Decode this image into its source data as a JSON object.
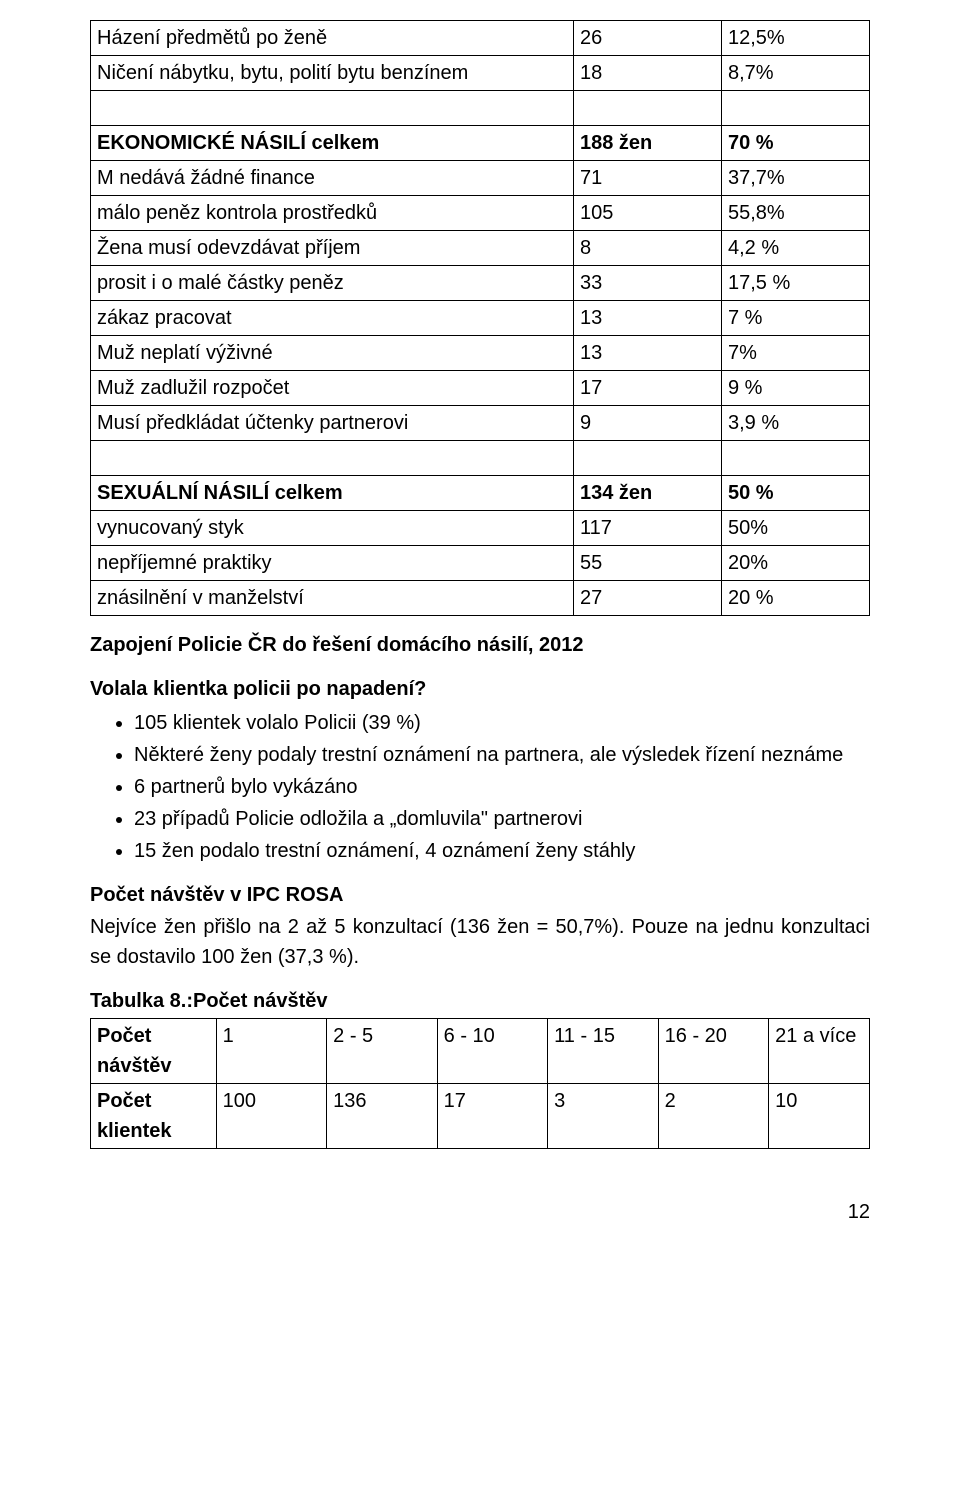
{
  "table1": {
    "rows": [
      {
        "c1": "Házení předmětů po ženě",
        "c2": "26",
        "c3": "12,5%",
        "bold": false
      },
      {
        "c1": "Ničení nábytku, bytu, polití bytu benzínem",
        "c2": "18",
        "c3": "8,7%",
        "bold": false,
        "justify": true
      },
      {
        "c1": "",
        "c2": "",
        "c3": "",
        "bold": false
      },
      {
        "c1": "EKONOMICKÉ NÁSILÍ     celkem",
        "c2": "188 žen",
        "c3": "70 %",
        "bold": true
      },
      {
        "c1": "M nedává žádné finance",
        "c2": "71",
        "c3": "37,7%",
        "bold": false
      },
      {
        "c1": "málo peněz kontrola prostředků",
        "c2": "105",
        "c3": "55,8%",
        "bold": false
      },
      {
        "c1": "Žena musí odevzdávat příjem",
        "c2": "8",
        "c3": "4,2 %",
        "bold": false
      },
      {
        "c1": "prosit i o malé částky peněz",
        "c2": "33",
        "c3": "17,5 %",
        "bold": false
      },
      {
        "c1": "zákaz pracovat",
        "c2": "13",
        "c3": "7 %",
        "bold": false
      },
      {
        "c1": "Muž neplatí výživné",
        "c2": "13",
        "c3": "7%",
        "bold": false
      },
      {
        "c1": "Muž zadlužil rozpočet",
        "c2": "17",
        "c3": "9 %",
        "bold": false
      },
      {
        "c1": "Musí předkládat účtenky partnerovi",
        "c2": "9",
        "c3": "3,9 %",
        "bold": false
      },
      {
        "c1": "",
        "c2": "",
        "c3": "",
        "bold": false
      },
      {
        "c1": "SEXUÁLNÍ NÁSILÍ           celkem",
        "c2": "134 žen",
        "c3": "50 %",
        "bold": true
      },
      {
        "c1": "vynucovaný styk",
        "c2": "117",
        "c3": "50%",
        "bold": false
      },
      {
        "c1": "nepříjemné praktiky",
        "c2": "55",
        "c3": "20%",
        "bold": false
      },
      {
        "c1": "znásilnění v manželství",
        "c2": "27",
        "c3": "20 %",
        "bold": false
      }
    ]
  },
  "section_police": {
    "heading": "Zapojení Policie ČR do řešení domácího násilí, 2012",
    "subheading": "Volala klientka policii po napadení?",
    "bullets": [
      "105 klientek volalo Policii  (39 %)",
      "Některé ženy podaly trestní oznámení na partnera, ale výsledek řízení neznáme",
      "6 partnerů bylo vykázáno",
      "23 případů Policie odložila  a „domluvila\" partnerovi",
      "15 žen podalo trestní oznámení, 4 oznámení ženy stáhly"
    ]
  },
  "section_visits": {
    "heading": "Počet návštěv v IPC ROSA",
    "line1": "Nejvíce žen přišlo na 2 až 5 konzultací (136 žen = 50,7%).   Pouze na jednu konzultaci se dostavilo 100 žen  (37,3 %).",
    "tablabel": "Tabulka 8.:Počet návštěv"
  },
  "table2": {
    "row1": [
      "Počet návštěv",
      "1",
      "2 - 5",
      "6 - 10",
      "11 - 15",
      "16 - 20",
      "21 a více"
    ],
    "row2": [
      "Počet klientek",
      "100",
      "136",
      "17",
      "3",
      "2",
      "10"
    ]
  },
  "pagenum": "12"
}
